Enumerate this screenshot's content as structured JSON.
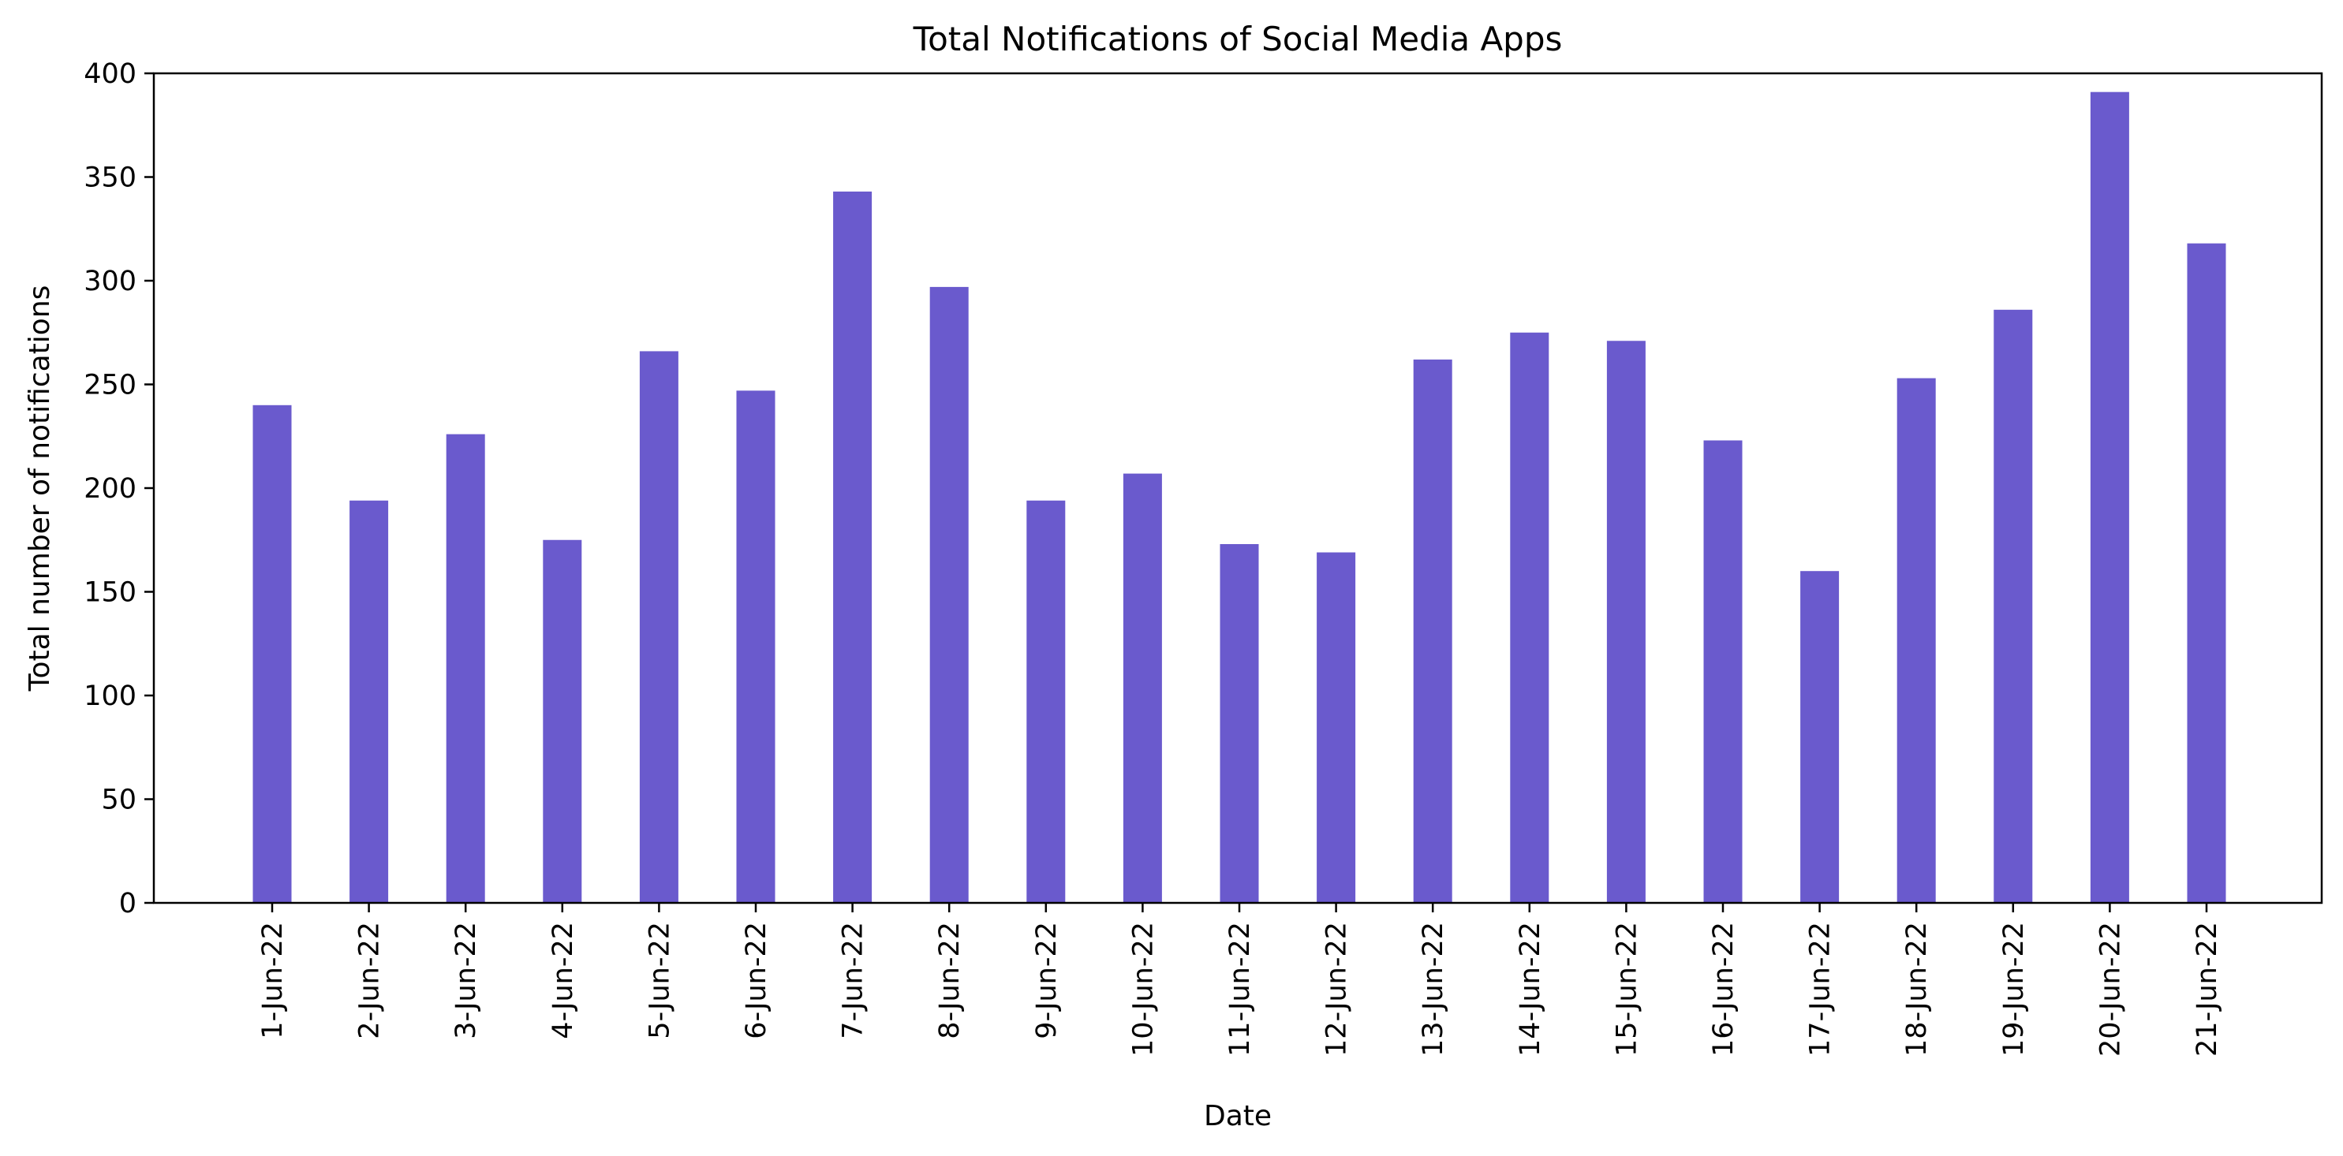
{
  "chart_data": {
    "type": "bar",
    "title": "Total Notifications of Social Media Apps",
    "xlabel": "Date",
    "ylabel": "Total number of notifications",
    "categories": [
      "1-Jun-22",
      "2-Jun-22",
      "3-Jun-22",
      "4-Jun-22",
      "5-Jun-22",
      "6-Jun-22",
      "7-Jun-22",
      "8-Jun-22",
      "9-Jun-22",
      "10-Jun-22",
      "11-Jun-22",
      "12-Jun-22",
      "13-Jun-22",
      "14-Jun-22",
      "15-Jun-22",
      "16-Jun-22",
      "17-Jun-22",
      "18-Jun-22",
      "19-Jun-22",
      "20-Jun-22",
      "21-Jun-22"
    ],
    "values": [
      240,
      194,
      226,
      175,
      266,
      247,
      343,
      297,
      194,
      207,
      173,
      169,
      262,
      275,
      271,
      223,
      160,
      253,
      286,
      391,
      318
    ],
    "ylim": [
      0,
      400
    ],
    "yticks": [
      0,
      50,
      100,
      150,
      200,
      250,
      300,
      350,
      400
    ],
    "bar_color": "#6a5acd",
    "grid": false,
    "legend": "none"
  }
}
